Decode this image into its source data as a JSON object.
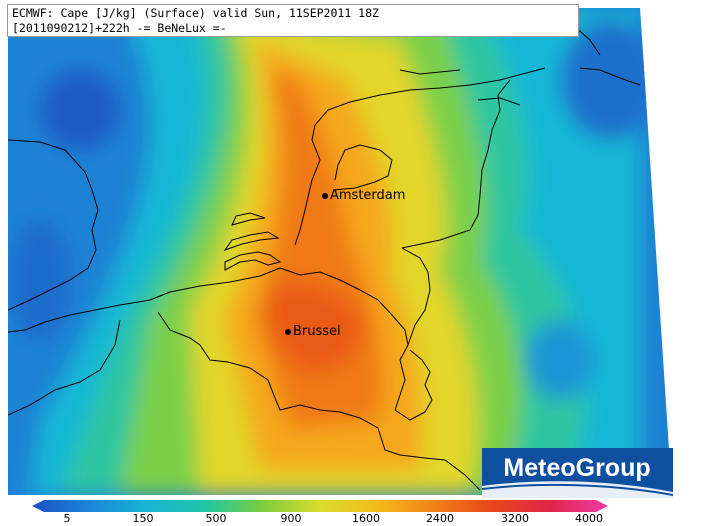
{
  "header": {
    "line1": "ECMWF: Cape [J/kg] (Surface) valid Sun, 11SEP2011 18Z",
    "line2": "[2011090212]+222h -= BeNeLux =-"
  },
  "cities": [
    {
      "name": "Amsterdam"
    },
    {
      "name": "Brussel"
    }
  ],
  "logo": {
    "text": "MeteoGroup",
    "colors": {
      "background": "#0f4fa0",
      "text": "#ffffff"
    }
  },
  "color_scale": {
    "labels": [
      "5",
      "150",
      "500",
      "900",
      "1600",
      "2400",
      "3200",
      "4000"
    ],
    "colors": [
      "#1d64c8",
      "#1c8fd6",
      "#19b6d8",
      "#1ec9a9",
      "#58c85a",
      "#b8d93a",
      "#f4cd1b",
      "#f7a21a",
      "#ef6a10",
      "#e03a12",
      "#e0205a",
      "#f23aa8"
    ]
  }
}
